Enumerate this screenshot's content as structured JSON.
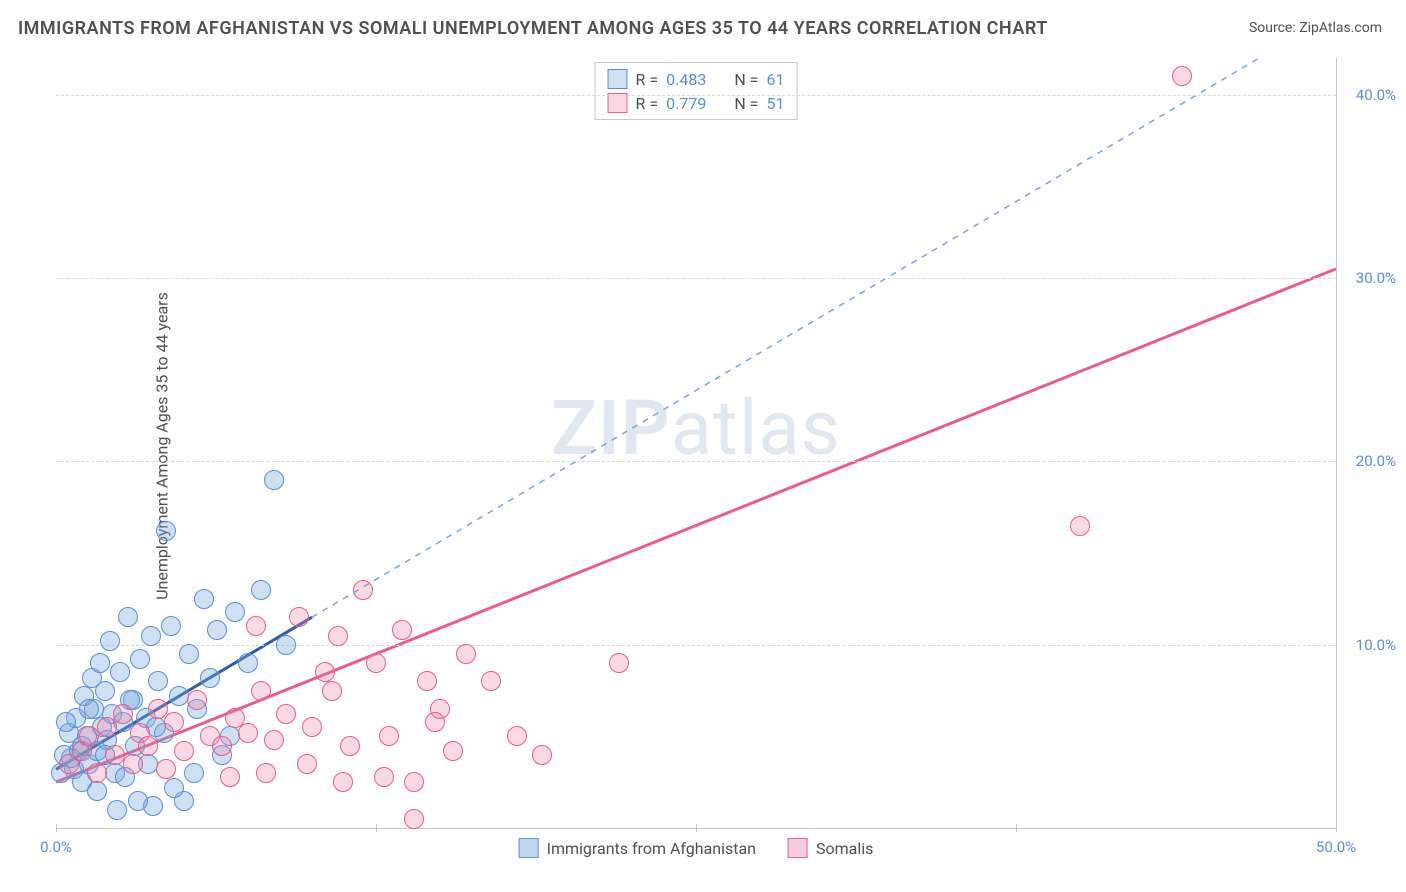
{
  "title": "IMMIGRANTS FROM AFGHANISTAN VS SOMALI UNEMPLOYMENT AMONG AGES 35 TO 44 YEARS CORRELATION CHART",
  "source_label": "Source: ",
  "source_value": "ZipAtlas.com",
  "ylabel": "Unemployment Among Ages 35 to 44 years",
  "watermark_a": "ZIP",
  "watermark_b": "atlas",
  "chart": {
    "type": "scatter",
    "xlim": [
      0,
      50
    ],
    "ylim": [
      0,
      42
    ],
    "x_ticks": [
      0,
      12.5,
      25,
      37.5,
      50
    ],
    "x_tick_labels": {
      "0": "0.0%",
      "50": "50.0%"
    },
    "y_ticks": [
      10,
      20,
      30,
      40
    ],
    "y_tick_labels": {
      "10": "10.0%",
      "20": "20.0%",
      "30": "30.0%",
      "40": "40.0%"
    },
    "grid_color": "#d8d8d8",
    "axis_color": "#c8c8c8",
    "tick_label_color": "#5a8fd6",
    "background_color": "#ffffff",
    "point_radius": 9,
    "point_stroke_width": 1.5,
    "series": [
      {
        "name": "Immigrants from Afghanistan",
        "fill": "rgba(120,165,220,0.35)",
        "stroke": "#5a8fd6",
        "r_label": "R =",
        "r_value": "0.483",
        "n_label": "N =",
        "n_value": "61",
        "trend": {
          "x1": 0,
          "y1": 3.2,
          "x2": 10,
          "y2": 11.5,
          "x2b": 47,
          "y2b": 42,
          "solid_color": "#2d5fa4",
          "dash_color": "#7ba3d6",
          "width": 3
        },
        "points": [
          [
            0.3,
            4.0
          ],
          [
            0.5,
            5.2
          ],
          [
            0.7,
            3.2
          ],
          [
            0.8,
            6.0
          ],
          [
            1.0,
            4.5
          ],
          [
            1.1,
            7.2
          ],
          [
            1.2,
            5.0
          ],
          [
            1.3,
            3.5
          ],
          [
            1.4,
            8.2
          ],
          [
            1.5,
            6.5
          ],
          [
            1.6,
            4.2
          ],
          [
            1.7,
            9.0
          ],
          [
            1.8,
            5.5
          ],
          [
            1.9,
            7.5
          ],
          [
            2.0,
            4.8
          ],
          [
            2.1,
            10.2
          ],
          [
            2.2,
            6.2
          ],
          [
            2.3,
            3.0
          ],
          [
            2.5,
            8.5
          ],
          [
            2.6,
            5.8
          ],
          [
            2.8,
            11.5
          ],
          [
            3.0,
            7.0
          ],
          [
            3.1,
            4.5
          ],
          [
            3.3,
            9.2
          ],
          [
            3.5,
            6.0
          ],
          [
            3.7,
            10.5
          ],
          [
            3.8,
            1.2
          ],
          [
            4.0,
            8.0
          ],
          [
            4.2,
            5.2
          ],
          [
            4.5,
            11.0
          ],
          [
            4.8,
            7.2
          ],
          [
            5.0,
            1.5
          ],
          [
            5.2,
            9.5
          ],
          [
            5.5,
            6.5
          ],
          [
            5.8,
            12.5
          ],
          [
            6.0,
            8.2
          ],
          [
            6.3,
            10.8
          ],
          [
            6.5,
            4.0
          ],
          [
            7.0,
            11.8
          ],
          [
            7.5,
            9.0
          ],
          [
            8.0,
            13.0
          ],
          [
            8.5,
            19.0
          ],
          [
            9.0,
            10.0
          ],
          [
            4.3,
            16.2
          ],
          [
            2.4,
            1.0
          ],
          [
            3.2,
            1.5
          ],
          [
            1.0,
            2.5
          ],
          [
            0.6,
            3.8
          ],
          [
            1.9,
            4.0
          ],
          [
            2.7,
            2.8
          ],
          [
            3.6,
            3.5
          ],
          [
            4.6,
            2.2
          ],
          [
            5.4,
            3.0
          ],
          [
            0.4,
            5.8
          ],
          [
            0.9,
            4.2
          ],
          [
            1.3,
            6.5
          ],
          [
            6.8,
            5.0
          ],
          [
            3.9,
            5.5
          ],
          [
            2.9,
            7.0
          ],
          [
            1.6,
            2.0
          ],
          [
            0.2,
            3.0
          ]
        ]
      },
      {
        "name": "Somalis",
        "fill": "rgba(235,130,165,0.30)",
        "stroke": "#e85d8c",
        "r_label": "R =",
        "r_value": "0.779",
        "n_label": "N =",
        "n_value": "51",
        "trend": {
          "x1": 0,
          "y1": 2.5,
          "x2": 50,
          "y2": 30.5,
          "solid_color": "#e85d8c",
          "width": 3
        },
        "points": [
          [
            0.5,
            3.5
          ],
          [
            1.0,
            4.2
          ],
          [
            1.3,
            5.0
          ],
          [
            1.6,
            3.0
          ],
          [
            2.0,
            5.5
          ],
          [
            2.3,
            4.0
          ],
          [
            2.6,
            6.2
          ],
          [
            3.0,
            3.5
          ],
          [
            3.3,
            5.2
          ],
          [
            3.6,
            4.5
          ],
          [
            4.0,
            6.5
          ],
          [
            4.3,
            3.2
          ],
          [
            4.6,
            5.8
          ],
          [
            5.0,
            4.2
          ],
          [
            5.5,
            7.0
          ],
          [
            6.0,
            5.0
          ],
          [
            6.5,
            4.5
          ],
          [
            7.0,
            6.0
          ],
          [
            7.5,
            5.2
          ],
          [
            8.0,
            7.5
          ],
          [
            8.5,
            4.8
          ],
          [
            9.0,
            6.2
          ],
          [
            9.5,
            11.5
          ],
          [
            10.0,
            5.5
          ],
          [
            10.5,
            8.5
          ],
          [
            11.0,
            10.5
          ],
          [
            11.5,
            4.5
          ],
          [
            12.0,
            13.0
          ],
          [
            12.5,
            9.0
          ],
          [
            13.0,
            5.0
          ],
          [
            13.5,
            10.8
          ],
          [
            14.0,
            2.5
          ],
          [
            14.5,
            8.0
          ],
          [
            15.0,
            6.5
          ],
          [
            16.0,
            9.5
          ],
          [
            17.0,
            8.0
          ],
          [
            18.0,
            5.0
          ],
          [
            19.0,
            4.0
          ],
          [
            11.2,
            2.5
          ],
          [
            14.0,
            0.5
          ],
          [
            14.8,
            5.8
          ],
          [
            10.8,
            7.5
          ],
          [
            12.8,
            2.8
          ],
          [
            15.5,
            4.2
          ],
          [
            9.8,
            3.5
          ],
          [
            8.2,
            3.0
          ],
          [
            22.0,
            9.0
          ],
          [
            40.0,
            16.5
          ],
          [
            44.0,
            41.0
          ],
          [
            6.8,
            2.8
          ],
          [
            7.8,
            11.0
          ]
        ]
      }
    ]
  },
  "legend_bottom": [
    {
      "label": "Immigrants from Afghanistan",
      "fill": "rgba(120,165,220,0.45)",
      "stroke": "#5a8fd6"
    },
    {
      "label": "Somalis",
      "fill": "rgba(235,130,165,0.40)",
      "stroke": "#e85d8c"
    }
  ]
}
